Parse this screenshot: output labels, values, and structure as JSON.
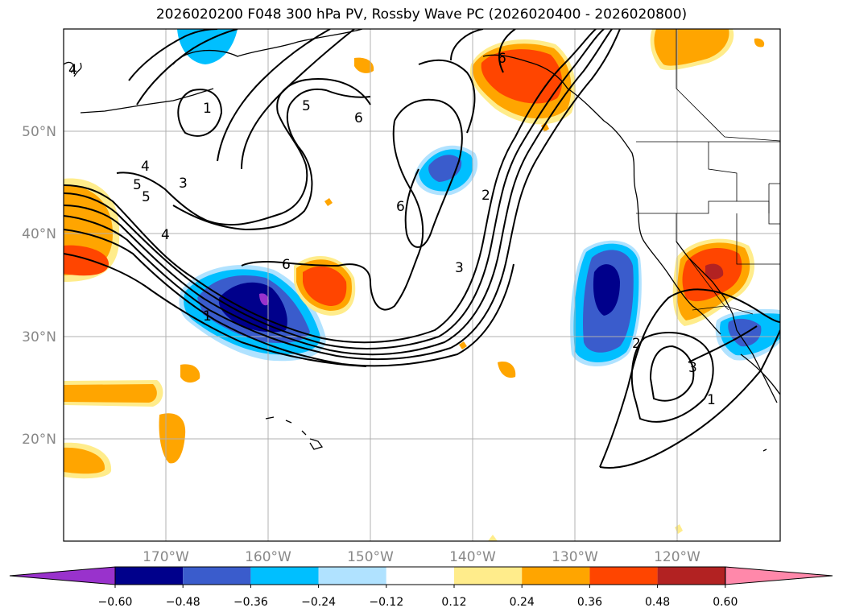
{
  "title": "2026020200 F048 300 hPa PV, Rossby Wave PC (2026020400 - 2026020800)",
  "map": {
    "lon_range": [
      -180,
      -110
    ],
    "lat_range": [
      10,
      60
    ],
    "lat_ticks": [
      {
        "value": 50,
        "label": "50°N"
      },
      {
        "value": 40,
        "label": "40°N"
      },
      {
        "value": 30,
        "label": "30°N"
      },
      {
        "value": 20,
        "label": "20°N"
      }
    ],
    "lon_ticks": [
      {
        "value": -170,
        "label": "170°W"
      },
      {
        "value": -160,
        "label": "160°W"
      },
      {
        "value": -150,
        "label": "150°W"
      },
      {
        "value": -140,
        "label": "140°W"
      },
      {
        "value": -130,
        "label": "130°W"
      },
      {
        "value": -120,
        "label": "120°W"
      }
    ],
    "contour_labels": [
      "1",
      "2",
      "3",
      "4",
      "5",
      "6"
    ]
  },
  "colorbar": {
    "colors": [
      "#9932cc",
      "#00008b",
      "#3a5ccc",
      "#00bfff",
      "#b0e2ff",
      "#ffffff",
      "#ffec8b",
      "#ffa500",
      "#ff4500",
      "#b22222",
      "#ff88aa"
    ],
    "tick_labels": [
      "−0.60",
      "−0.48",
      "−0.36",
      "−0.24",
      "−0.12",
      "0.12",
      "0.24",
      "0.36",
      "0.48",
      "0.60"
    ]
  }
}
